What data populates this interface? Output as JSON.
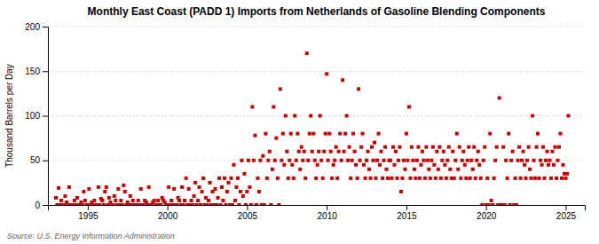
{
  "chart_data": {
    "type": "scatter",
    "title": "Monthly East Coast (PADD 1) Imports from Netherlands of Gasoline Blending Components",
    "ylabel": "Thousand Barrels per Day",
    "source": "Source: U.S. Energy Information Administration",
    "color": "#CC0000",
    "marker": "square",
    "grid": "y",
    "xlim": [
      1992.5,
      2026.2
    ],
    "ylim": [
      0,
      200
    ],
    "xticks": [
      1995,
      2000,
      2005,
      2010,
      2015,
      2020,
      2025
    ],
    "yticks": [
      0,
      50,
      100,
      150,
      200
    ],
    "x": [
      1993.0,
      1993.083,
      1993.167,
      1993.25,
      1993.333,
      1993.417,
      1993.5,
      1993.583,
      1993.667,
      1993.75,
      1993.833,
      1993.917,
      1994.0,
      1994.083,
      1994.167,
      1994.25,
      1994.333,
      1994.417,
      1994.5,
      1994.583,
      1994.667,
      1994.75,
      1994.833,
      1994.917,
      1995.0,
      1995.083,
      1995.167,
      1995.25,
      1995.333,
      1995.417,
      1995.5,
      1995.583,
      1995.667,
      1995.75,
      1995.833,
      1995.917,
      1996.0,
      1996.083,
      1996.167,
      1996.25,
      1996.333,
      1996.417,
      1996.5,
      1996.583,
      1996.667,
      1996.75,
      1996.833,
      1996.917,
      1997.0,
      1997.083,
      1997.167,
      1997.25,
      1997.333,
      1997.417,
      1997.5,
      1997.583,
      1997.667,
      1997.75,
      1997.833,
      1997.917,
      1998.0,
      1998.083,
      1998.167,
      1998.25,
      1998.333,
      1998.417,
      1998.5,
      1998.583,
      1998.667,
      1998.75,
      1998.833,
      1998.917,
      1999.0,
      1999.083,
      1999.167,
      1999.25,
      1999.333,
      1999.417,
      1999.5,
      1999.583,
      1999.667,
      1999.75,
      1999.833,
      1999.917,
      2000.0,
      2000.083,
      2000.167,
      2000.25,
      2000.333,
      2000.417,
      2000.5,
      2000.583,
      2000.667,
      2000.75,
      2000.833,
      2000.917,
      2001.0,
      2001.083,
      2001.167,
      2001.25,
      2001.333,
      2001.417,
      2001.5,
      2001.583,
      2001.667,
      2001.75,
      2001.833,
      2001.917,
      2002.0,
      2002.083,
      2002.167,
      2002.25,
      2002.333,
      2002.417,
      2002.5,
      2002.583,
      2002.667,
      2002.75,
      2002.833,
      2002.917,
      2003.0,
      2003.083,
      2003.167,
      2003.25,
      2003.333,
      2003.417,
      2003.5,
      2003.583,
      2003.667,
      2003.75,
      2003.833,
      2003.917,
      2004.0,
      2004.083,
      2004.167,
      2004.25,
      2004.333,
      2004.417,
      2004.5,
      2004.583,
      2004.667,
      2004.75,
      2004.833,
      2004.917,
      2005.0,
      2005.083,
      2005.167,
      2005.25,
      2005.333,
      2005.417,
      2005.5,
      2005.583,
      2005.667,
      2005.75,
      2005.833,
      2005.917,
      2006.0,
      2006.083,
      2006.167,
      2006.25,
      2006.333,
      2006.417,
      2006.5,
      2006.583,
      2006.667,
      2006.75,
      2006.833,
      2006.917,
      2007.0,
      2007.083,
      2007.167,
      2007.25,
      2007.333,
      2007.417,
      2007.5,
      2007.583,
      2007.667,
      2007.75,
      2007.833,
      2007.917,
      2008.0,
      2008.083,
      2008.167,
      2008.25,
      2008.333,
      2008.417,
      2008.5,
      2008.583,
      2008.667,
      2008.75,
      2008.833,
      2008.917,
      2009.0,
      2009.083,
      2009.167,
      2009.25,
      2009.333,
      2009.417,
      2009.5,
      2009.583,
      2009.667,
      2009.75,
      2009.833,
      2009.917,
      2010.0,
      2010.083,
      2010.167,
      2010.25,
      2010.333,
      2010.417,
      2010.5,
      2010.583,
      2010.667,
      2010.75,
      2010.833,
      2010.917,
      2011.0,
      2011.083,
      2011.167,
      2011.25,
      2011.333,
      2011.417,
      2011.5,
      2011.583,
      2011.667,
      2011.75,
      2011.833,
      2011.917,
      2012.0,
      2012.083,
      2012.167,
      2012.25,
      2012.333,
      2012.417,
      2012.5,
      2012.583,
      2012.667,
      2012.75,
      2012.833,
      2012.917,
      2013.0,
      2013.083,
      2013.167,
      2013.25,
      2013.333,
      2013.417,
      2013.5,
      2013.583,
      2013.667,
      2013.75,
      2013.833,
      2013.917,
      2014.0,
      2014.083,
      2014.167,
      2014.25,
      2014.333,
      2014.417,
      2014.5,
      2014.583,
      2014.667,
      2014.75,
      2014.833,
      2014.917,
      2015.0,
      2015.083,
      2015.167,
      2015.25,
      2015.333,
      2015.417,
      2015.5,
      2015.583,
      2015.667,
      2015.75,
      2015.833,
      2015.917,
      2016.0,
      2016.083,
      2016.167,
      2016.25,
      2016.333,
      2016.417,
      2016.5,
      2016.583,
      2016.667,
      2016.75,
      2016.833,
      2016.917,
      2017.0,
      2017.083,
      2017.167,
      2017.25,
      2017.333,
      2017.417,
      2017.5,
      2017.583,
      2017.667,
      2017.75,
      2017.833,
      2017.917,
      2018.0,
      2018.083,
      2018.167,
      2018.25,
      2018.333,
      2018.417,
      2018.5,
      2018.583,
      2018.667,
      2018.75,
      2018.833,
      2018.917,
      2019.0,
      2019.083,
      2019.167,
      2019.25,
      2019.333,
      2019.417,
      2019.5,
      2019.583,
      2019.667,
      2019.75,
      2019.833,
      2019.917,
      2020.0,
      2020.083,
      2020.167,
      2020.25,
      2020.333,
      2020.417,
      2020.5,
      2020.583,
      2020.667,
      2020.75,
      2020.833,
      2020.917,
      2021.0,
      2021.083,
      2021.167,
      2021.25,
      2021.333,
      2021.417,
      2021.5,
      2021.583,
      2021.667,
      2021.75,
      2021.833,
      2021.917,
      2022.0,
      2022.083,
      2022.167,
      2022.25,
      2022.333,
      2022.417,
      2022.5,
      2022.583,
      2022.667,
      2022.75,
      2022.833,
      2022.917,
      2023.0,
      2023.083,
      2023.167,
      2023.25,
      2023.333,
      2023.417,
      2023.5,
      2023.583,
      2023.667,
      2023.75,
      2023.833,
      2023.917,
      2024.0,
      2024.083,
      2024.167,
      2024.25,
      2024.333,
      2024.417,
      2024.5,
      2024.583,
      2024.667,
      2024.75,
      2024.833,
      2024.917,
      2025.0,
      2025.083,
      2025.167
    ],
    "values": [
      8,
      0,
      19,
      0,
      5,
      0,
      0,
      10,
      3,
      0,
      20,
      0,
      0,
      0,
      5,
      0,
      8,
      0,
      0,
      3,
      0,
      15,
      5,
      0,
      0,
      18,
      0,
      3,
      0,
      5,
      0,
      0,
      20,
      0,
      7,
      5,
      0,
      15,
      20,
      0,
      8,
      3,
      0,
      0,
      10,
      5,
      0,
      18,
      0,
      5,
      0,
      22,
      15,
      0,
      3,
      0,
      10,
      0,
      5,
      0,
      0,
      0,
      5,
      0,
      18,
      0,
      0,
      5,
      3,
      0,
      20,
      0,
      0,
      3,
      5,
      0,
      0,
      5,
      0,
      0,
      8,
      5,
      3,
      0,
      0,
      20,
      0,
      5,
      0,
      18,
      0,
      0,
      8,
      5,
      0,
      20,
      0,
      5,
      30,
      0,
      18,
      0,
      5,
      0,
      10,
      25,
      0,
      5,
      20,
      0,
      15,
      30,
      0,
      8,
      0,
      5,
      25,
      0,
      15,
      0,
      18,
      0,
      8,
      30,
      0,
      20,
      5,
      30,
      0,
      15,
      25,
      0,
      30,
      0,
      45,
      5,
      20,
      30,
      0,
      15,
      50,
      10,
      35,
      0,
      15,
      50,
      20,
      0,
      110,
      50,
      78,
      0,
      30,
      15,
      50,
      0,
      55,
      0,
      80,
      30,
      50,
      60,
      0,
      40,
      110,
      50,
      75,
      30,
      0,
      130,
      50,
      80,
      45,
      100,
      60,
      30,
      50,
      80,
      45,
      30,
      100,
      50,
      80,
      60,
      40,
      65,
      50,
      60,
      30,
      170,
      50,
      80,
      100,
      60,
      80,
      50,
      30,
      45,
      60,
      100,
      50,
      30,
      60,
      80,
      147,
      50,
      80,
      60,
      30,
      45,
      50,
      65,
      30,
      60,
      80,
      50,
      140,
      60,
      80,
      100,
      50,
      65,
      30,
      50,
      80,
      60,
      45,
      30,
      130,
      50,
      65,
      80,
      45,
      30,
      50,
      60,
      40,
      30,
      65,
      50,
      70,
      30,
      50,
      80,
      45,
      60,
      30,
      50,
      65,
      40,
      30,
      50,
      50,
      30,
      65,
      45,
      60,
      30,
      50,
      65,
      15,
      30,
      50,
      40,
      80,
      50,
      110,
      30,
      65,
      50,
      40,
      30,
      50,
      65,
      30,
      45,
      60,
      50,
      30,
      65,
      50,
      40,
      30,
      50,
      65,
      45,
      30,
      60,
      40,
      65,
      30,
      50,
      60,
      45,
      30,
      50,
      65,
      40,
      30,
      60,
      30,
      50,
      80,
      40,
      65,
      30,
      50,
      60,
      45,
      30,
      50,
      65,
      30,
      50,
      40,
      65,
      30,
      50,
      60,
      45,
      30,
      0,
      50,
      65,
      0,
      30,
      0,
      80,
      5,
      0,
      30,
      50,
      65,
      0,
      120,
      0,
      0,
      65,
      0,
      50,
      30,
      80,
      0,
      50,
      60,
      0,
      30,
      0,
      50,
      65,
      30,
      50,
      60,
      45,
      30,
      50,
      65,
      40,
      30,
      100,
      50,
      30,
      65,
      80,
      30,
      50,
      45,
      65,
      30,
      50,
      60,
      45,
      50,
      30,
      60,
      45,
      65,
      30,
      50,
      65,
      80,
      30,
      45,
      35,
      30,
      35,
      100
    ]
  }
}
